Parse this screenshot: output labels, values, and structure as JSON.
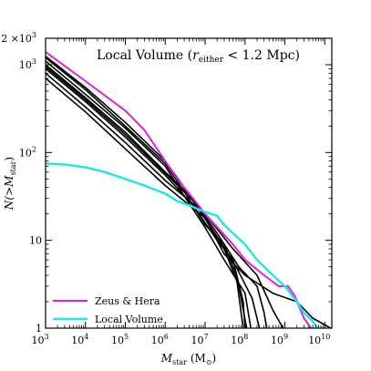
{
  "chart_data": {
    "type": "line",
    "title": "Local Volume (r_either < 1.2 Mpc)",
    "title_parts": {
      "prefix": "Local Volume (",
      "var": "r",
      "sub": "either",
      "suffix": " < 1.2 Mpc)"
    },
    "xlabel": "M_star (M_sun)",
    "xlabel_parts": {
      "var": "M",
      "sub": "star",
      "unit_open": " (M",
      "unit_sub": "⊙",
      "unit_close": ")"
    },
    "ylabel": "N(>M_star)",
    "ylabel_parts": {
      "prefix": "N(>",
      "var": "M",
      "sub": "star",
      "suffix": ")"
    },
    "x_scale": "log",
    "y_scale": "log",
    "xlim": [
      1000,
      15000000000
    ],
    "ylim": [
      1,
      2000
    ],
    "x_ticks": [
      {
        "value": 1000,
        "base": "10",
        "exp": "3"
      },
      {
        "value": 10000,
        "base": "10",
        "exp": "4"
      },
      {
        "value": 100000,
        "base": "10",
        "exp": "5"
      },
      {
        "value": 1000000,
        "base": "10",
        "exp": "6"
      },
      {
        "value": 10000000,
        "base": "10",
        "exp": "7"
      },
      {
        "value": 100000000,
        "base": "10",
        "exp": "8"
      },
      {
        "value": 1000000000,
        "base": "10",
        "exp": "9"
      },
      {
        "value": 10000000000,
        "base": "10",
        "exp": "10"
      }
    ],
    "y_ticks": [
      {
        "value": 1,
        "label": "1",
        "exp": ""
      },
      {
        "value": 10,
        "label": "10",
        "exp": ""
      },
      {
        "value": 100,
        "label": "10",
        "exp": "2"
      },
      {
        "value": 1000,
        "label": "10",
        "exp": "3"
      },
      {
        "value": 2000,
        "label": "2 ×10",
        "exp": "3"
      }
    ],
    "legend_placement": "bottom-left",
    "legend": [
      {
        "label": "Zeus & Hera",
        "color": "#e020e0"
      },
      {
        "label": "Local Volume",
        "color": "#22e5f0"
      }
    ],
    "series": [
      {
        "name": "Zeus & Hera",
        "color": "#e020e0",
        "width": 2,
        "points": [
          [
            1000,
            1400
          ],
          [
            10000,
            650
          ],
          [
            100000,
            300
          ],
          [
            300000,
            180
          ],
          [
            1000000,
            80
          ],
          [
            2000000,
            50
          ],
          [
            5000000,
            30
          ],
          [
            10000000,
            20
          ],
          [
            50000000,
            9
          ],
          [
            100000000,
            6
          ],
          [
            300000000,
            4
          ],
          [
            700000000,
            3
          ],
          [
            1200000000,
            3
          ],
          [
            1800000000,
            2.3
          ],
          [
            3000000000,
            1.3
          ],
          [
            4500000000,
            1
          ]
        ]
      },
      {
        "name": "Local Volume",
        "color": "#22e5f0",
        "width": 2.5,
        "points": [
          [
            1000,
            75
          ],
          [
            3000,
            73
          ],
          [
            10000,
            68
          ],
          [
            30000,
            60
          ],
          [
            100000,
            50
          ],
          [
            300000,
            42
          ],
          [
            1000000,
            34
          ],
          [
            2000000,
            28
          ],
          [
            5000000,
            24
          ],
          [
            10000000,
            21
          ],
          [
            20000000,
            19
          ],
          [
            30000000,
            15
          ],
          [
            50000000,
            12
          ],
          [
            100000000,
            9
          ],
          [
            200000000,
            6
          ],
          [
            500000000,
            4
          ],
          [
            1000000000,
            3
          ],
          [
            2000000000,
            2
          ],
          [
            3000000000,
            1.5
          ],
          [
            5000000000,
            1.2
          ],
          [
            6500000000,
            1
          ]
        ]
      },
      {
        "color": "#000000",
        "width": 1.6,
        "points": [
          [
            1000,
            1250
          ],
          [
            10000,
            550
          ],
          [
            100000,
            220
          ],
          [
            1000000,
            80
          ],
          [
            3000000,
            40
          ],
          [
            10000000,
            18
          ],
          [
            30000000,
            8
          ],
          [
            70000000,
            3
          ],
          [
            110000000,
            1
          ]
        ]
      },
      {
        "color": "#000000",
        "width": 1.6,
        "points": [
          [
            1000,
            1100
          ],
          [
            10000,
            460
          ],
          [
            100000,
            190
          ],
          [
            1000000,
            70
          ],
          [
            3000000,
            32
          ],
          [
            10000000,
            14
          ],
          [
            30000000,
            6
          ],
          [
            100000000,
            2.5
          ],
          [
            140000000,
            1
          ]
        ]
      },
      {
        "color": "#000000",
        "width": 1.6,
        "points": [
          [
            1000,
            1000
          ],
          [
            10000,
            420
          ],
          [
            100000,
            170
          ],
          [
            1000000,
            60
          ],
          [
            5000000,
            30
          ],
          [
            20000000,
            12
          ],
          [
            70000000,
            5
          ],
          [
            200000000,
            3
          ],
          [
            300000000,
            1.5
          ],
          [
            350000000,
            1
          ]
        ]
      },
      {
        "color": "#000000",
        "width": 1.6,
        "points": [
          [
            1000,
            900
          ],
          [
            10000,
            380
          ],
          [
            100000,
            150
          ],
          [
            1000000,
            55
          ],
          [
            5000000,
            25
          ],
          [
            20000000,
            10
          ],
          [
            50000000,
            6
          ],
          [
            90000000,
            2
          ],
          [
            100000000,
            1
          ]
        ]
      },
      {
        "color": "#000000",
        "width": 1.6,
        "points": [
          [
            1000,
            800
          ],
          [
            10000,
            330
          ],
          [
            100000,
            130
          ],
          [
            1000000,
            48
          ],
          [
            10000000,
            20
          ],
          [
            50000000,
            8
          ],
          [
            200000000,
            4
          ],
          [
            500000000,
            1.6
          ],
          [
            900000000,
            1
          ]
        ]
      },
      {
        "color": "#000000",
        "width": 1.6,
        "points": [
          [
            1000,
            700
          ],
          [
            10000,
            290
          ],
          [
            100000,
            110
          ],
          [
            1000000,
            42
          ],
          [
            10000000,
            18
          ],
          [
            30000000,
            7
          ],
          [
            100000000,
            4
          ],
          [
            500000000,
            2.5
          ],
          [
            2000000000,
            2
          ],
          [
            5000000000,
            1.3
          ],
          [
            14000000000,
            1
          ]
        ]
      },
      {
        "color": "#000000",
        "width": 1.6,
        "points": [
          [
            1000,
            1200
          ],
          [
            10000,
            520
          ],
          [
            100000,
            200
          ],
          [
            1000000,
            75
          ],
          [
            3000000,
            36
          ],
          [
            10000000,
            15
          ],
          [
            30000000,
            9
          ],
          [
            60000000,
            4
          ],
          [
            80000000,
            1.5
          ],
          [
            90000000,
            1
          ]
        ]
      },
      {
        "color": "#000000",
        "width": 1.6,
        "points": [
          [
            1000,
            950
          ],
          [
            10000,
            400
          ],
          [
            100000,
            160
          ],
          [
            1000000,
            58
          ],
          [
            5000000,
            28
          ],
          [
            20000000,
            11
          ],
          [
            60000000,
            5
          ],
          [
            150000000,
            2.2
          ],
          [
            230000000,
            1
          ]
        ]
      }
    ]
  }
}
